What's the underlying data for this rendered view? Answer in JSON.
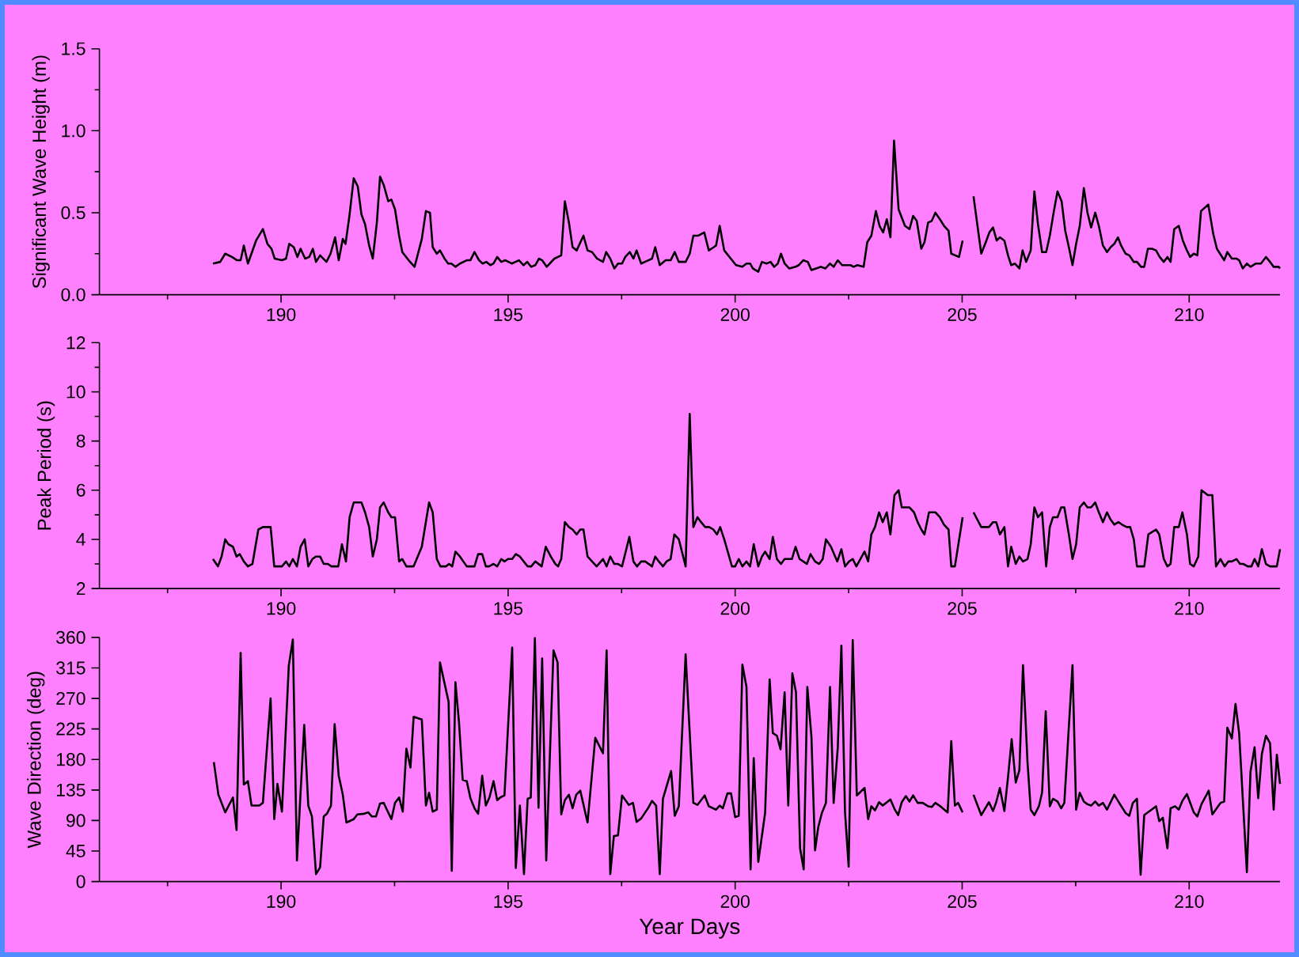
{
  "chart_data": [
    {
      "type": "line",
      "ylabel": "Significant Wave Height (m)",
      "xlim": [
        186,
        212
      ],
      "ylim": [
        0,
        1.5
      ],
      "xticks": [
        {
          "value": 187.5,
          "label": null
        },
        190,
        {
          "value": 192.5,
          "label": null
        },
        195,
        {
          "value": 197.5,
          "label": null
        },
        200,
        {
          "value": 202.5,
          "label": null
        },
        205,
        {
          "value": 207.5,
          "label": null
        },
        210
      ],
      "yticks": [
        {
          "value": 0,
          "label": "0.0"
        },
        {
          "value": 0.25,
          "label": null
        },
        {
          "value": 0.5,
          "label": "0.5"
        },
        {
          "value": 0.75,
          "label": null
        },
        {
          "value": 1,
          "label": "1.0"
        },
        {
          "value": 1.25,
          "label": null
        },
        {
          "value": 1.5,
          "label": "1.5"
        }
      ],
      "series": [
        {
          "color": "#000000",
          "x": [
            188.5,
            188.66,
            188.77,
            188.92,
            189.03,
            189.11,
            189.18,
            189.27,
            189.45,
            189.6,
            189.7,
            189.79,
            189.86,
            190.02,
            190.11,
            190.18,
            190.28,
            190.36,
            190.43,
            190.53,
            190.62,
            190.7,
            190.77,
            190.86,
            191.0,
            191.09,
            191.19,
            191.27,
            191.36,
            191.42,
            191.51,
            191.6,
            191.69,
            191.77,
            191.85,
            191.94,
            192.02,
            192.11,
            192.18,
            192.26,
            192.36,
            192.43,
            192.51,
            192.6,
            192.67,
            192.81,
            192.94,
            193.1,
            193.19,
            193.28,
            193.34,
            193.43,
            193.5,
            193.6,
            193.68,
            193.75,
            193.84,
            193.94,
            194.09,
            194.17,
            194.26,
            194.36,
            194.44,
            194.52,
            194.61,
            194.68,
            194.76,
            194.85,
            194.94,
            195.08,
            195.24,
            195.34,
            195.42,
            195.51,
            195.6,
            195.68,
            195.75,
            195.85,
            196.02,
            196.17,
            196.25,
            196.34,
            196.42,
            196.51,
            196.66,
            196.75,
            196.85,
            196.96,
            197.09,
            197.16,
            197.25,
            197.34,
            197.42,
            197.51,
            197.58,
            197.68,
            197.76,
            197.83,
            197.93,
            198.09,
            198.17,
            198.24,
            198.34,
            198.47,
            198.58,
            198.67,
            198.76,
            198.91,
            199.0,
            199.08,
            199.19,
            199.32,
            199.42,
            199.53,
            199.58,
            199.66,
            199.76,
            200.02,
            200.16,
            200.25,
            200.33,
            200.39,
            200.51,
            200.59,
            200.69,
            200.78,
            200.86,
            200.94,
            201.01,
            201.09,
            201.19,
            201.33,
            201.4,
            201.5,
            201.6,
            201.68,
            201.78,
            201.89,
            201.99,
            202.09,
            202.17,
            202.26,
            202.36,
            202.54,
            202.61,
            202.69,
            202.83,
            202.91,
            203.0,
            203.1,
            203.18,
            203.26,
            203.34,
            203.42,
            203.5,
            203.6,
            203.74,
            203.84,
            203.92,
            204.0,
            204.1,
            204.17,
            204.25,
            204.33,
            204.41,
            204.51,
            204.6,
            204.7,
            204.76,
            204.93,
            205.01,
            205.13,
            205.25,
            205.42,
            205.52,
            205.6,
            205.68,
            205.76,
            205.83,
            205.93,
            206.01,
            206.08,
            206.16,
            206.26,
            206.33,
            206.41,
            206.51,
            206.59,
            206.67,
            206.76,
            206.85,
            206.93,
            207.02,
            207.1,
            207.19,
            207.27,
            207.35,
            207.43,
            207.51,
            207.59,
            207.68,
            207.76,
            207.84,
            207.93,
            208.01,
            208.1,
            208.19,
            208.27,
            208.35,
            208.43,
            208.5,
            208.6,
            208.68,
            208.78,
            208.85,
            208.94,
            209.01,
            209.09,
            209.18,
            209.27,
            209.35,
            209.44,
            209.52,
            209.59,
            209.67,
            209.77,
            209.86,
            209.95,
            210.02,
            210.1,
            210.18,
            210.26,
            210.42,
            210.53,
            210.61,
            210.77,
            210.84,
            210.94,
            211.04,
            211.1,
            211.18,
            211.27,
            211.35,
            211.47,
            211.58,
            211.69,
            211.78,
            211.86,
            211.97,
            212.0
          ],
          "values": [
            0.19,
            0.2,
            0.25,
            0.23,
            0.21,
            0.21,
            0.3,
            0.19,
            0.33,
            0.4,
            0.31,
            0.28,
            0.22,
            0.21,
            0.22,
            0.31,
            0.29,
            0.23,
            0.28,
            0.22,
            0.23,
            0.28,
            0.2,
            0.24,
            0.2,
            0.25,
            0.35,
            0.21,
            0.34,
            0.31,
            0.49,
            0.71,
            0.66,
            0.49,
            0.43,
            0.3,
            0.22,
            0.44,
            0.72,
            0.67,
            0.57,
            0.58,
            0.52,
            0.36,
            0.26,
            0.21,
            0.17,
            0.34,
            0.51,
            0.5,
            0.29,
            0.25,
            0.27,
            0.22,
            0.19,
            0.19,
            0.17,
            0.19,
            0.21,
            0.21,
            0.26,
            0.21,
            0.19,
            0.2,
            0.18,
            0.19,
            0.23,
            0.2,
            0.21,
            0.19,
            0.21,
            0.18,
            0.2,
            0.17,
            0.18,
            0.22,
            0.21,
            0.17,
            0.22,
            0.24,
            0.57,
            0.44,
            0.29,
            0.27,
            0.36,
            0.27,
            0.26,
            0.22,
            0.2,
            0.26,
            0.22,
            0.16,
            0.19,
            0.19,
            0.23,
            0.26,
            0.22,
            0.27,
            0.19,
            0.21,
            0.22,
            0.29,
            0.18,
            0.21,
            0.21,
            0.26,
            0.2,
            0.2,
            0.25,
            0.36,
            0.36,
            0.38,
            0.27,
            0.29,
            0.3,
            0.42,
            0.27,
            0.18,
            0.17,
            0.19,
            0.19,
            0.16,
            0.14,
            0.2,
            0.19,
            0.2,
            0.17,
            0.19,
            0.25,
            0.19,
            0.16,
            0.17,
            0.18,
            0.21,
            0.2,
            0.15,
            0.16,
            0.17,
            0.16,
            0.19,
            0.17,
            0.21,
            0.18,
            0.18,
            0.17,
            0.18,
            0.17,
            0.32,
            0.36,
            0.51,
            0.42,
            0.38,
            0.46,
            0.35,
            0.94,
            0.52,
            0.42,
            0.4,
            0.48,
            0.45,
            0.28,
            0.32,
            0.44,
            0.45,
            0.5,
            0.46,
            0.42,
            0.39,
            0.25,
            0.23,
            0.33,
            null,
            0.6,
            0.25,
            0.32,
            0.38,
            0.41,
            0.33,
            0.35,
            0.33,
            0.24,
            0.18,
            0.19,
            0.16,
            0.27,
            0.2,
            0.27,
            0.63,
            0.43,
            0.26,
            0.26,
            0.36,
            0.51,
            0.63,
            0.57,
            0.39,
            0.29,
            0.18,
            0.31,
            0.42,
            0.65,
            0.5,
            0.41,
            0.5,
            0.42,
            0.3,
            0.26,
            0.29,
            0.31,
            0.35,
            0.3,
            0.25,
            0.24,
            0.2,
            0.2,
            0.17,
            0.17,
            0.28,
            0.28,
            0.27,
            0.23,
            0.2,
            0.23,
            0.2,
            0.4,
            0.42,
            0.33,
            0.27,
            0.23,
            0.25,
            0.24,
            0.51,
            0.55,
            0.37,
            0.28,
            0.21,
            0.26,
            0.22,
            0.22,
            0.21,
            0.16,
            0.19,
            0.17,
            0.19,
            0.19,
            0.23,
            0.2,
            0.17,
            0.17,
            0.16
          ]
        }
      ]
    },
    {
      "type": "line",
      "ylabel": "Peak Period (s)",
      "xlim": [
        186,
        212
      ],
      "ylim": [
        2,
        12
      ],
      "xticks": [
        {
          "value": 187.5,
          "label": null
        },
        190,
        {
          "value": 192.5,
          "label": null
        },
        195,
        {
          "value": 197.5,
          "label": null
        },
        200,
        {
          "value": 202.5,
          "label": null
        },
        205,
        {
          "value": 207.5,
          "label": null
        },
        210
      ],
      "yticks": [
        2,
        {
          "value": 3,
          "label": null
        },
        4,
        {
          "value": 5,
          "label": null
        },
        6,
        {
          "value": 7,
          "label": null
        },
        8,
        {
          "value": 9,
          "label": null
        },
        10,
        {
          "value": 11,
          "label": null
        },
        12
      ],
      "series": [
        {
          "color": "#000000",
          "x": [
            188.5,
            188.61,
            188.69,
            188.77,
            188.84,
            188.94,
            189.02,
            189.09,
            189.18,
            189.27,
            189.37,
            189.5,
            189.6,
            189.77,
            189.85,
            190.02,
            190.11,
            190.18,
            190.26,
            190.35,
            190.43,
            190.52,
            190.6,
            190.69,
            190.77,
            190.86,
            190.94,
            191.03,
            191.11,
            191.26,
            191.34,
            191.43,
            191.51,
            191.6,
            191.77,
            191.85,
            191.94,
            192.02,
            192.11,
            192.18,
            192.26,
            192.36,
            192.43,
            192.51,
            192.6,
            192.67,
            192.76,
            192.92,
            193.1,
            193.26,
            193.34,
            193.43,
            193.51,
            193.63,
            193.7,
            193.77,
            193.84,
            193.94,
            194.09,
            194.26,
            194.34,
            194.43,
            194.51,
            194.58,
            194.68,
            194.76,
            194.85,
            194.92,
            195.0,
            195.09,
            195.17,
            195.26,
            195.43,
            195.51,
            195.6,
            195.74,
            195.83,
            195.94,
            196.04,
            196.1,
            196.17,
            196.25,
            196.34,
            196.42,
            196.51,
            196.59,
            196.66,
            196.75,
            196.85,
            196.95,
            197.09,
            197.17,
            197.25,
            197.34,
            197.42,
            197.51,
            197.67,
            197.76,
            197.84,
            197.93,
            198.02,
            198.17,
            198.24,
            198.32,
            198.41,
            198.49,
            198.58,
            198.66,
            198.76,
            198.91,
            199.0,
            199.08,
            199.17,
            199.25,
            199.34,
            199.43,
            199.52,
            199.6,
            199.67,
            199.76,
            199.93,
            200.0,
            200.08,
            200.16,
            200.25,
            200.33,
            200.41,
            200.51,
            200.59,
            200.66,
            200.76,
            200.83,
            200.92,
            201.01,
            201.09,
            201.25,
            201.33,
            201.42,
            201.58,
            201.66,
            201.76,
            201.85,
            201.93,
            202.0,
            202.11,
            202.25,
            202.34,
            202.42,
            202.51,
            202.59,
            202.67,
            202.85,
            202.93,
            203.0,
            203.08,
            203.17,
            203.25,
            203.34,
            203.42,
            203.51,
            203.6,
            203.67,
            203.84,
            203.94,
            204.02,
            204.1,
            204.17,
            204.27,
            204.41,
            204.51,
            204.6,
            204.7,
            204.76,
            204.84,
            205.01,
            205.13,
            205.25,
            205.42,
            205.59,
            205.68,
            205.75,
            205.83,
            205.93,
            206.01,
            206.08,
            206.18,
            206.26,
            206.34,
            206.44,
            206.51,
            206.59,
            206.67,
            206.76,
            206.85,
            206.93,
            207.0,
            207.1,
            207.18,
            207.25,
            207.35,
            207.43,
            207.51,
            207.59,
            207.68,
            207.76,
            207.84,
            207.93,
            208.01,
            208.1,
            208.19,
            208.27,
            208.35,
            208.44,
            208.52,
            208.62,
            208.7,
            208.78,
            208.85,
            209.01,
            209.1,
            209.27,
            209.34,
            209.44,
            209.52,
            209.59,
            209.67,
            209.77,
            209.85,
            209.95,
            210.02,
            210.1,
            210.2,
            210.27,
            210.41,
            210.51,
            210.59,
            210.69,
            210.78,
            210.86,
            210.94,
            211.04,
            211.12,
            211.19,
            211.29,
            211.37,
            211.44,
            211.52,
            211.6,
            211.69,
            211.78,
            211.93,
            212.0
          ],
          "values": [
            3.2,
            2.9,
            3.3,
            4.0,
            3.8,
            3.7,
            3.3,
            3.4,
            3.1,
            2.9,
            3.0,
            4.4,
            4.5,
            4.5,
            2.9,
            2.9,
            3.1,
            2.9,
            3.2,
            2.9,
            3.7,
            4.0,
            2.9,
            3.2,
            3.3,
            3.3,
            3.0,
            3.0,
            2.9,
            2.9,
            3.8,
            3.1,
            4.9,
            5.5,
            5.5,
            5.1,
            4.5,
            3.3,
            4.0,
            5.3,
            5.5,
            5.1,
            4.9,
            4.9,
            3.1,
            3.2,
            2.9,
            2.9,
            3.7,
            5.5,
            5.1,
            3.2,
            2.9,
            2.9,
            3.0,
            2.9,
            3.5,
            3.3,
            2.9,
            2.9,
            3.4,
            3.4,
            2.9,
            2.9,
            3.0,
            2.9,
            3.2,
            3.1,
            3.2,
            3.2,
            3.4,
            3.3,
            2.9,
            2.9,
            3.1,
            2.9,
            3.7,
            3.3,
            3.0,
            2.9,
            3.2,
            4.7,
            4.5,
            4.4,
            4.2,
            4.4,
            4.4,
            3.3,
            3.1,
            2.9,
            3.2,
            2.9,
            3.3,
            3.0,
            3.0,
            2.9,
            4.1,
            3.1,
            2.9,
            3.1,
            3.1,
            2.9,
            3.3,
            3.1,
            2.9,
            3.1,
            3.2,
            4.2,
            4.0,
            2.9,
            9.1,
            4.5,
            4.9,
            4.7,
            4.5,
            4.5,
            4.4,
            4.2,
            4.5,
            4.0,
            2.9,
            2.9,
            3.2,
            2.9,
            3.1,
            2.9,
            3.8,
            2.9,
            3.3,
            3.5,
            3.2,
            4.1,
            3.2,
            3.0,
            3.2,
            3.2,
            3.7,
            3.2,
            3.0,
            3.4,
            3.1,
            3.0,
            3.2,
            4.0,
            3.7,
            3.1,
            3.6,
            2.9,
            3.1,
            3.2,
            2.9,
            3.5,
            3.1,
            4.2,
            4.5,
            5.1,
            4.7,
            5.1,
            4.2,
            5.8,
            6.0,
            5.3,
            5.3,
            5.1,
            4.7,
            4.4,
            4.2,
            5.1,
            5.1,
            4.9,
            4.6,
            4.4,
            2.9,
            2.9,
            4.9,
            null,
            5.1,
            4.5,
            4.5,
            4.7,
            4.7,
            4.2,
            4.5,
            2.9,
            3.7,
            3.0,
            3.3,
            3.1,
            3.2,
            3.8,
            5.3,
            4.9,
            5.1,
            2.9,
            4.5,
            4.9,
            4.9,
            5.3,
            5.3,
            4.2,
            3.2,
            3.8,
            5.3,
            5.5,
            5.3,
            5.3,
            5.5,
            5.1,
            4.7,
            5.1,
            4.8,
            4.6,
            4.7,
            4.6,
            4.5,
            4.5,
            4.0,
            2.9,
            2.9,
            4.2,
            4.4,
            4.2,
            3.2,
            2.9,
            3.0,
            4.5,
            4.5,
            5.1,
            4.2,
            3.0,
            2.9,
            3.3,
            6.0,
            5.8,
            5.8,
            2.9,
            3.2,
            2.9,
            3.1,
            3.1,
            3.2,
            3.0,
            3.0,
            2.9,
            2.9,
            3.2,
            2.9,
            3.6,
            3.0,
            2.9,
            2.9,
            3.6
          ]
        }
      ]
    },
    {
      "type": "line",
      "ylabel": "Wave Direction (deg)",
      "xlabel": "Year Days",
      "xlim": [
        186,
        212
      ],
      "ylim": [
        0,
        360
      ],
      "xticks": [
        {
          "value": 187.5,
          "label": null
        },
        190,
        {
          "value": 192.5,
          "label": null
        },
        195,
        {
          "value": 197.5,
          "label": null
        },
        200,
        {
          "value": 202.5,
          "label": null
        },
        205,
        {
          "value": 207.5,
          "label": null
        },
        210
      ],
      "yticks": [
        0,
        45,
        90,
        135,
        180,
        225,
        270,
        315,
        360
      ],
      "series": [
        {
          "color": "#000000",
          "x": [
            188.52,
            188.62,
            188.77,
            188.94,
            189.02,
            189.11,
            189.18,
            189.27,
            189.35,
            189.52,
            189.6,
            189.77,
            189.85,
            189.92,
            190.02,
            190.17,
            190.26,
            190.35,
            190.51,
            190.6,
            190.68,
            190.77,
            190.86,
            190.94,
            191.01,
            191.1,
            191.18,
            191.27,
            191.36,
            191.44,
            191.6,
            191.68,
            191.83,
            191.92,
            192.0,
            192.09,
            192.18,
            192.26,
            192.43,
            192.51,
            192.6,
            192.68,
            192.76,
            192.85,
            192.92,
            193.1,
            193.19,
            193.26,
            193.34,
            193.43,
            193.5,
            193.69,
            193.76,
            193.84,
            193.92,
            194.0,
            194.09,
            194.17,
            194.26,
            194.34,
            194.43,
            194.51,
            194.59,
            194.68,
            194.76,
            194.83,
            194.92,
            195.09,
            195.17,
            195.26,
            195.35,
            195.43,
            195.5,
            195.59,
            195.67,
            195.75,
            195.84,
            196.0,
            196.09,
            196.17,
            196.25,
            196.34,
            196.42,
            196.5,
            196.59,
            196.75,
            196.92,
            197.09,
            197.17,
            197.25,
            197.33,
            197.42,
            197.51,
            197.66,
            197.75,
            197.83,
            197.93,
            198.09,
            198.17,
            198.26,
            198.34,
            198.41,
            198.59,
            198.67,
            198.76,
            198.91,
            199.08,
            199.17,
            199.33,
            199.42,
            199.58,
            199.66,
            199.73,
            199.83,
            199.91,
            200.0,
            200.08,
            200.16,
            200.25,
            200.34,
            200.41,
            200.51,
            200.66,
            200.76,
            200.83,
            200.92,
            201.0,
            201.09,
            201.17,
            201.26,
            201.34,
            201.43,
            201.51,
            201.59,
            201.68,
            201.76,
            201.83,
            201.91,
            202.0,
            202.09,
            202.17,
            202.26,
            202.34,
            202.42,
            202.5,
            202.59,
            202.68,
            202.85,
            202.93,
            203.0,
            203.08,
            203.17,
            203.25,
            203.42,
            203.51,
            203.59,
            203.67,
            203.76,
            203.84,
            203.92,
            204.02,
            204.13,
            204.25,
            204.33,
            204.41,
            204.52,
            204.68,
            204.76,
            204.84,
            204.91,
            205.01,
            205.13,
            205.25,
            205.42,
            205.59,
            205.68,
            205.75,
            205.83,
            205.93,
            206.01,
            206.09,
            206.18,
            206.26,
            206.34,
            206.44,
            206.51,
            206.59,
            206.69,
            206.76,
            206.84,
            206.93,
            207.0,
            207.1,
            207.18,
            207.25,
            207.43,
            207.51,
            207.59,
            207.68,
            207.76,
            207.84,
            207.93,
            208.01,
            208.1,
            208.19,
            208.35,
            208.44,
            208.6,
            208.68,
            208.76,
            208.85,
            208.93,
            209.01,
            209.27,
            209.34,
            209.42,
            209.52,
            209.59,
            209.69,
            209.77,
            209.85,
            209.95,
            210.1,
            210.18,
            210.27,
            210.43,
            210.51,
            210.69,
            210.77,
            210.84,
            210.94,
            211.02,
            211.1,
            211.27,
            211.35,
            211.44,
            211.52,
            211.6,
            211.69,
            211.78,
            211.86,
            211.93,
            212.0
          ],
          "values": [
            176,
            128,
            102,
            124,
            76,
            337,
            143,
            148,
            112,
            112,
            116,
            270,
            92,
            144,
            103,
            318,
            357,
            31,
            231,
            112,
            96,
            11,
            21,
            96,
            100,
            112,
            232,
            156,
            128,
            87,
            92,
            99,
            100,
            102,
            96,
            96,
            115,
            116,
            92,
            116,
            124,
            103,
            196,
            168,
            243,
            239,
            112,
            131,
            103,
            106,
            323,
            265,
            16,
            294,
            234,
            150,
            148,
            123,
            108,
            100,
            156,
            112,
            124,
            148,
            120,
            124,
            127,
            345,
            20,
            112,
            11,
            122,
            124,
            359,
            109,
            329,
            31,
            341,
            323,
            99,
            120,
            128,
            108,
            128,
            134,
            87,
            212,
            189,
            341,
            11,
            67,
            68,
            127,
            113,
            116,
            88,
            93,
            109,
            119,
            112,
            11,
            122,
            163,
            97,
            111,
            335,
            116,
            113,
            127,
            111,
            106,
            112,
            108,
            130,
            130,
            95,
            97,
            320,
            287,
            18,
            182,
            29,
            101,
            298,
            219,
            215,
            195,
            279,
            112,
            307,
            279,
            49,
            18,
            287,
            214,
            46,
            80,
            101,
            116,
            287,
            116,
            197,
            348,
            102,
            22,
            356,
            127,
            138,
            92,
            111,
            105,
            117,
            112,
            121,
            107,
            98,
            117,
            126,
            118,
            127,
            116,
            116,
            111,
            110,
            116,
            111,
            102,
            207,
            112,
            116,
            102,
            null,
            128,
            98,
            117,
            104,
            117,
            138,
            104,
            154,
            210,
            146,
            164,
            319,
            175,
            106,
            98,
            111,
            131,
            251,
            111,
            122,
            118,
            108,
            116,
            319,
            106,
            131,
            118,
            114,
            112,
            118,
            112,
            116,
            106,
            128,
            118,
            101,
            97,
            116,
            122,
            10,
            98,
            111,
            89,
            94,
            49,
            108,
            111,
            106,
            119,
            129,
            102,
            96,
            114,
            134,
            99,
            116,
            118,
            227,
            211,
            262,
            219,
            14,
            162,
            198,
            123,
            188,
            215,
            204,
            106,
            187,
            144
          ]
        }
      ]
    }
  ]
}
